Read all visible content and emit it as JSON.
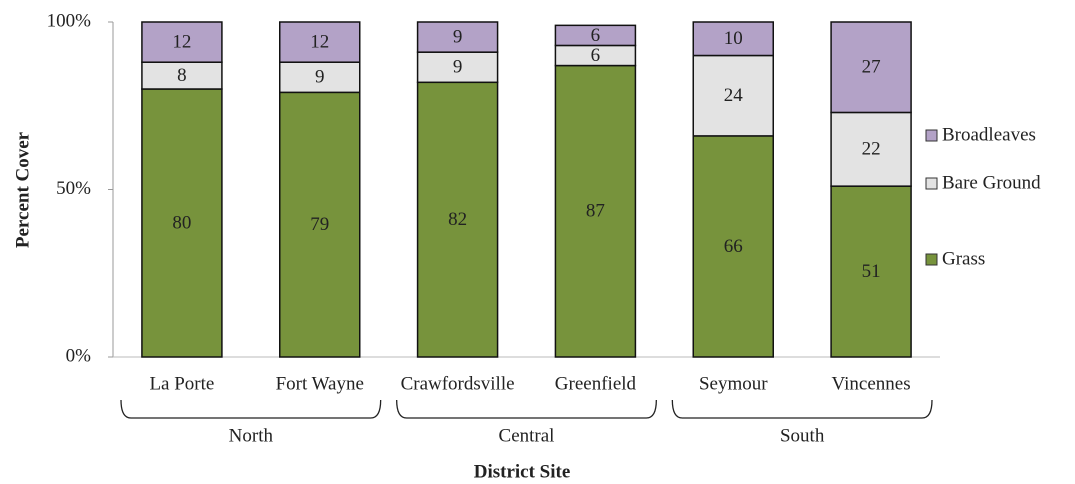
{
  "chart_data": {
    "type": "stacked_bar",
    "x_label": "District Site",
    "y_label": "Percent Cover",
    "categories": [
      "La Porte",
      "Fort Wayne",
      "Crawfordsville",
      "Greenfield",
      "Seymour",
      "Vincennes"
    ],
    "groups": [
      "North",
      "Central",
      "South"
    ],
    "series": [
      {
        "name": "Grass",
        "color": "#77933c",
        "values": [
          80,
          79,
          82,
          87,
          66,
          51
        ]
      },
      {
        "name": "Bare Ground",
        "color": "#e3e3e3",
        "values": [
          8,
          9,
          9,
          6,
          24,
          22
        ]
      },
      {
        "name": "Broadleaves",
        "color": "#b3a2c7",
        "values": [
          12,
          12,
          9,
          6,
          10,
          27
        ]
      }
    ],
    "ylim": [
      0,
      100
    ],
    "yticks": [
      {
        "value": 0,
        "label": "0%"
      },
      {
        "value": 50,
        "label": "50%"
      },
      {
        "value": 100,
        "label": "100%"
      }
    ],
    "grid": false,
    "legend": "right"
  }
}
